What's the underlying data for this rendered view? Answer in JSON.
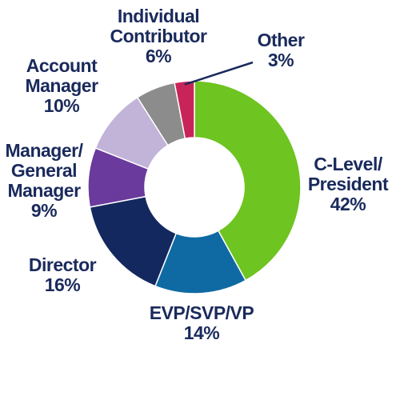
{
  "chart_data": {
    "type": "donut",
    "title": "",
    "slices": [
      {
        "label_lines": [
          "C-Level/",
          "President"
        ],
        "value": 42,
        "value_label": "42%",
        "color": "#6ec420"
      },
      {
        "label_lines": [
          "EVP/SVP/VP"
        ],
        "value": 14,
        "value_label": "14%",
        "color": "#0f6aa3"
      },
      {
        "label_lines": [
          "Director"
        ],
        "value": 16,
        "value_label": "16%",
        "color": "#13285e"
      },
      {
        "label_lines": [
          "Manager/",
          "General",
          "Manager"
        ],
        "value": 9,
        "value_label": "9%",
        "color": "#6a3a9c"
      },
      {
        "label_lines": [
          "Account",
          "Manager"
        ],
        "value": 10,
        "value_label": "10%",
        "color": "#c2b3d9"
      },
      {
        "label_lines": [
          "Individual",
          "Contributor"
        ],
        "value": 6,
        "value_label": "6%",
        "color": "#8c8c8c"
      },
      {
        "label_lines": [
          "Other"
        ],
        "value": 3,
        "value_label": "3%",
        "color": "#c8245a"
      }
    ],
    "label_color": "#1a2a5c"
  }
}
